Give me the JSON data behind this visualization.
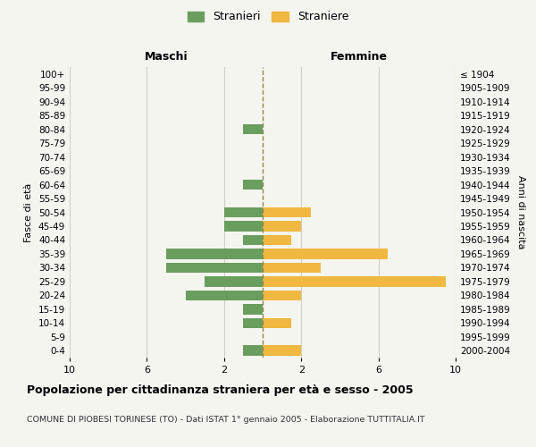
{
  "age_groups": [
    "100+",
    "95-99",
    "90-94",
    "85-89",
    "80-84",
    "75-79",
    "70-74",
    "65-69",
    "60-64",
    "55-59",
    "50-54",
    "45-49",
    "40-44",
    "35-39",
    "30-34",
    "25-29",
    "20-24",
    "15-19",
    "10-14",
    "5-9",
    "0-4"
  ],
  "birth_years": [
    "≤ 1904",
    "1905-1909",
    "1910-1914",
    "1915-1919",
    "1920-1924",
    "1925-1929",
    "1930-1934",
    "1935-1939",
    "1940-1944",
    "1945-1949",
    "1950-1954",
    "1955-1959",
    "1960-1964",
    "1965-1969",
    "1970-1974",
    "1975-1979",
    "1980-1984",
    "1985-1989",
    "1990-1994",
    "1995-1999",
    "2000-2004"
  ],
  "maschi": [
    0,
    0,
    0,
    0,
    1,
    0,
    0,
    0,
    1,
    0,
    2,
    2,
    1,
    5,
    5,
    3,
    4,
    1,
    1,
    0,
    1
  ],
  "femmine": [
    0,
    0,
    0,
    0,
    0,
    0,
    0,
    0,
    0,
    0,
    2.5,
    2,
    1.5,
    6.5,
    3,
    9.5,
    2,
    0,
    1.5,
    0,
    2
  ],
  "color_maschi": "#6a9e5f",
  "color_femmine": "#f0b840",
  "color_center_line": "#8b8b4b",
  "xlabel_maschi": "Maschi",
  "xlabel_femmine": "Femmine",
  "ylabel_left": "Fasce di età",
  "ylabel_right": "Anni di nascita",
  "legend_stranieri": "Stranieri",
  "legend_straniere": "Straniere",
  "title": "Popolazione per cittadinanza straniera per età e sesso - 2005",
  "subtitle": "COMUNE DI PIOBESI TORINESE (TO) - Dati ISTAT 1° gennaio 2005 - Elaborazione TUTTITALIA.IT",
  "bg_color": "#f5f5f0",
  "grid_color": "#d0d0c8"
}
